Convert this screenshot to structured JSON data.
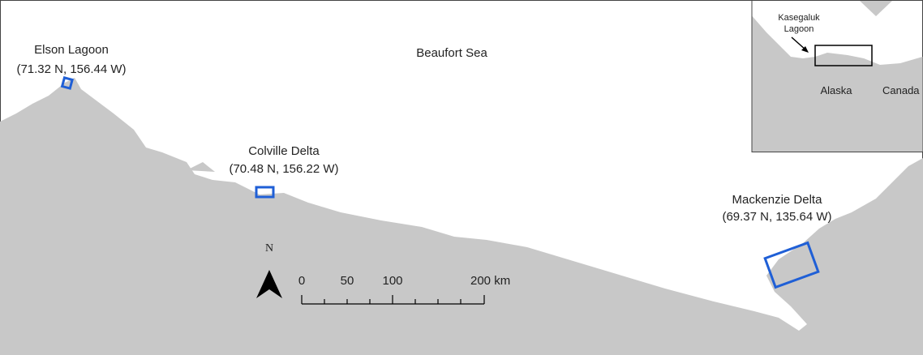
{
  "map": {
    "sea_label": "Beaufort Sea",
    "sites": [
      {
        "name": "Elson Lagoon",
        "coords": "(71.32 N, 156.44 W)"
      },
      {
        "name": "Colville Delta",
        "coords": "(70.48 N, 156.22 W)"
      },
      {
        "name": "Mackenzie Delta",
        "coords": "(69.37 N, 135.64 W)"
      }
    ],
    "north_arrow": "N",
    "scale_bar": {
      "labels": [
        "0",
        "50",
        "100",
        "200 km"
      ]
    }
  },
  "inset": {
    "lagoon_label": [
      "Kasegaluk",
      "Lagoon"
    ],
    "regions": [
      "Alaska",
      "Canada"
    ]
  }
}
